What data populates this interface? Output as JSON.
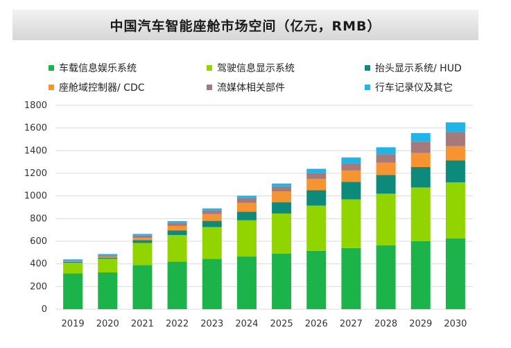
{
  "chart_data": {
    "type": "bar",
    "stacked": true,
    "title": "中国汽车智能座舱市场空间（亿元，RMB）",
    "categories": [
      "2019",
      "2020",
      "2021",
      "2022",
      "2023",
      "2024",
      "2025",
      "2026",
      "2027",
      "2028",
      "2029",
      "2030"
    ],
    "ylim": [
      0,
      1800
    ],
    "yticks": [
      "0",
      "200",
      "400",
      "600",
      "800",
      "1000",
      "1200",
      "1400",
      "1600",
      "1800"
    ],
    "grid": true,
    "legend_position": "top",
    "series": [
      {
        "name": "车载信息娱乐系统",
        "color": "#1db34b",
        "values": [
          315,
          325,
          390,
          420,
          445,
          465,
          490,
          515,
          540,
          565,
          600,
          625
        ]
      },
      {
        "name": "驾驶信息显示系统",
        "color": "#92d400",
        "values": [
          95,
          120,
          195,
          235,
          280,
          320,
          355,
          400,
          430,
          455,
          475,
          495
        ]
      },
      {
        "name": "抬头显示系统/ HUD",
        "color": "#0e8a7b",
        "values": [
          8,
          10,
          25,
          40,
          55,
          75,
          100,
          135,
          155,
          165,
          180,
          195
        ]
      },
      {
        "name": "座舱域控制器/ CDC",
        "color": "#f79432",
        "values": [
          5,
          10,
          20,
          40,
          60,
          80,
          95,
          100,
          100,
          110,
          125,
          125
        ]
      },
      {
        "name": "流媒体相关部件",
        "color": "#a6797a",
        "values": [
          8,
          10,
          20,
          25,
          30,
          40,
          45,
          55,
          65,
          75,
          100,
          125
        ]
      },
      {
        "name": "行车记录仪及其它",
        "color": "#20b5e8",
        "values": [
          9,
          12,
          15,
          18,
          20,
          22,
          25,
          35,
          50,
          60,
          75,
          85
        ]
      }
    ]
  }
}
